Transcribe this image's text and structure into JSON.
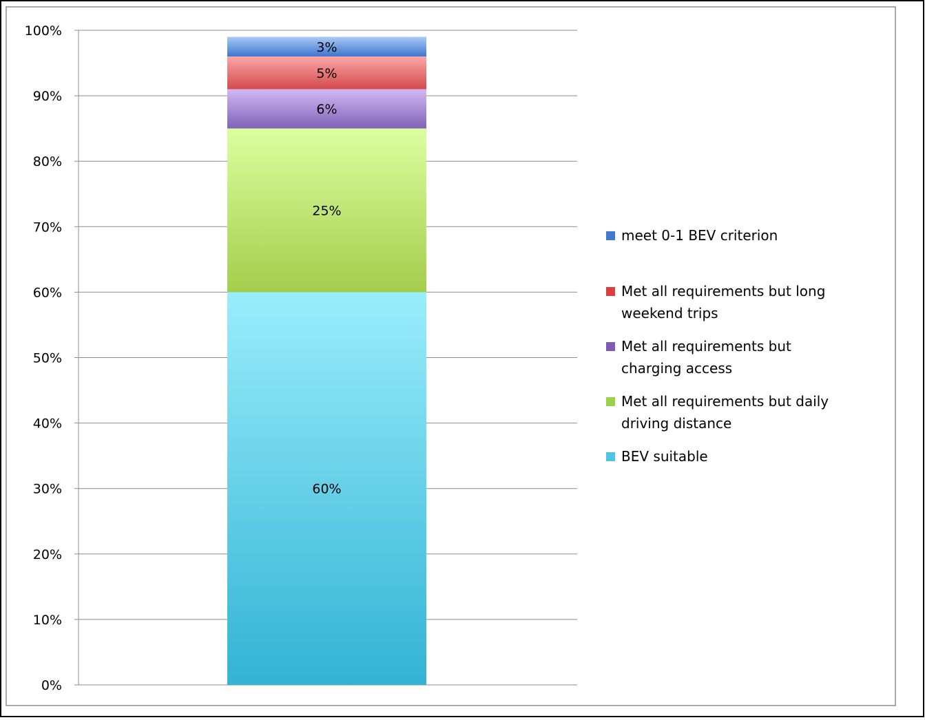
{
  "chart_data": {
    "type": "bar",
    "stacked": true,
    "percent": true,
    "categories": [
      ""
    ],
    "series": [
      {
        "name": "BEV suitable",
        "values": [
          60
        ],
        "label": "60%",
        "color_top": "#9aedfb",
        "color_bottom": "#33b3d4",
        "legend_color": "#4cc6e6"
      },
      {
        "name": "Met all requirements but daily driving distance",
        "values": [
          25
        ],
        "label": "25%",
        "color_top": "#dbffa0",
        "color_bottom": "#a5cd4c",
        "legend_color": "#9bd24a"
      },
      {
        "name": "Met all requirements but charging access",
        "values": [
          6
        ],
        "label": "6%",
        "color_top": "#d2b8f2",
        "color_bottom": "#8063b8",
        "legend_color": "#7d5bb6"
      },
      {
        "name": "Met all requirements but long weekend trips",
        "values": [
          5
        ],
        "label": "5%",
        "color_top": "#fba7a7",
        "color_bottom": "#d4494b",
        "legend_color": "#d9403f"
      },
      {
        "name": "meet 0-1 BEV criterion",
        "values": [
          3
        ],
        "label": "3%",
        "color_top": "#a9c9f7",
        "color_bottom": "#3e76cc",
        "legend_color": "#4178d0"
      }
    ],
    "y_ticks": [
      "0%",
      "10%",
      "20%",
      "30%",
      "40%",
      "50%",
      "60%",
      "70%",
      "80%",
      "90%",
      "100%"
    ],
    "ylim": [
      0,
      100
    ],
    "grid": true,
    "legend_position": "right",
    "legend_order": [
      "meet 0-1 BEV criterion",
      "Met all requirements but long weekend trips",
      "Met all requirements but charging access",
      "Met all requirements but daily driving distance",
      "BEV suitable"
    ]
  }
}
